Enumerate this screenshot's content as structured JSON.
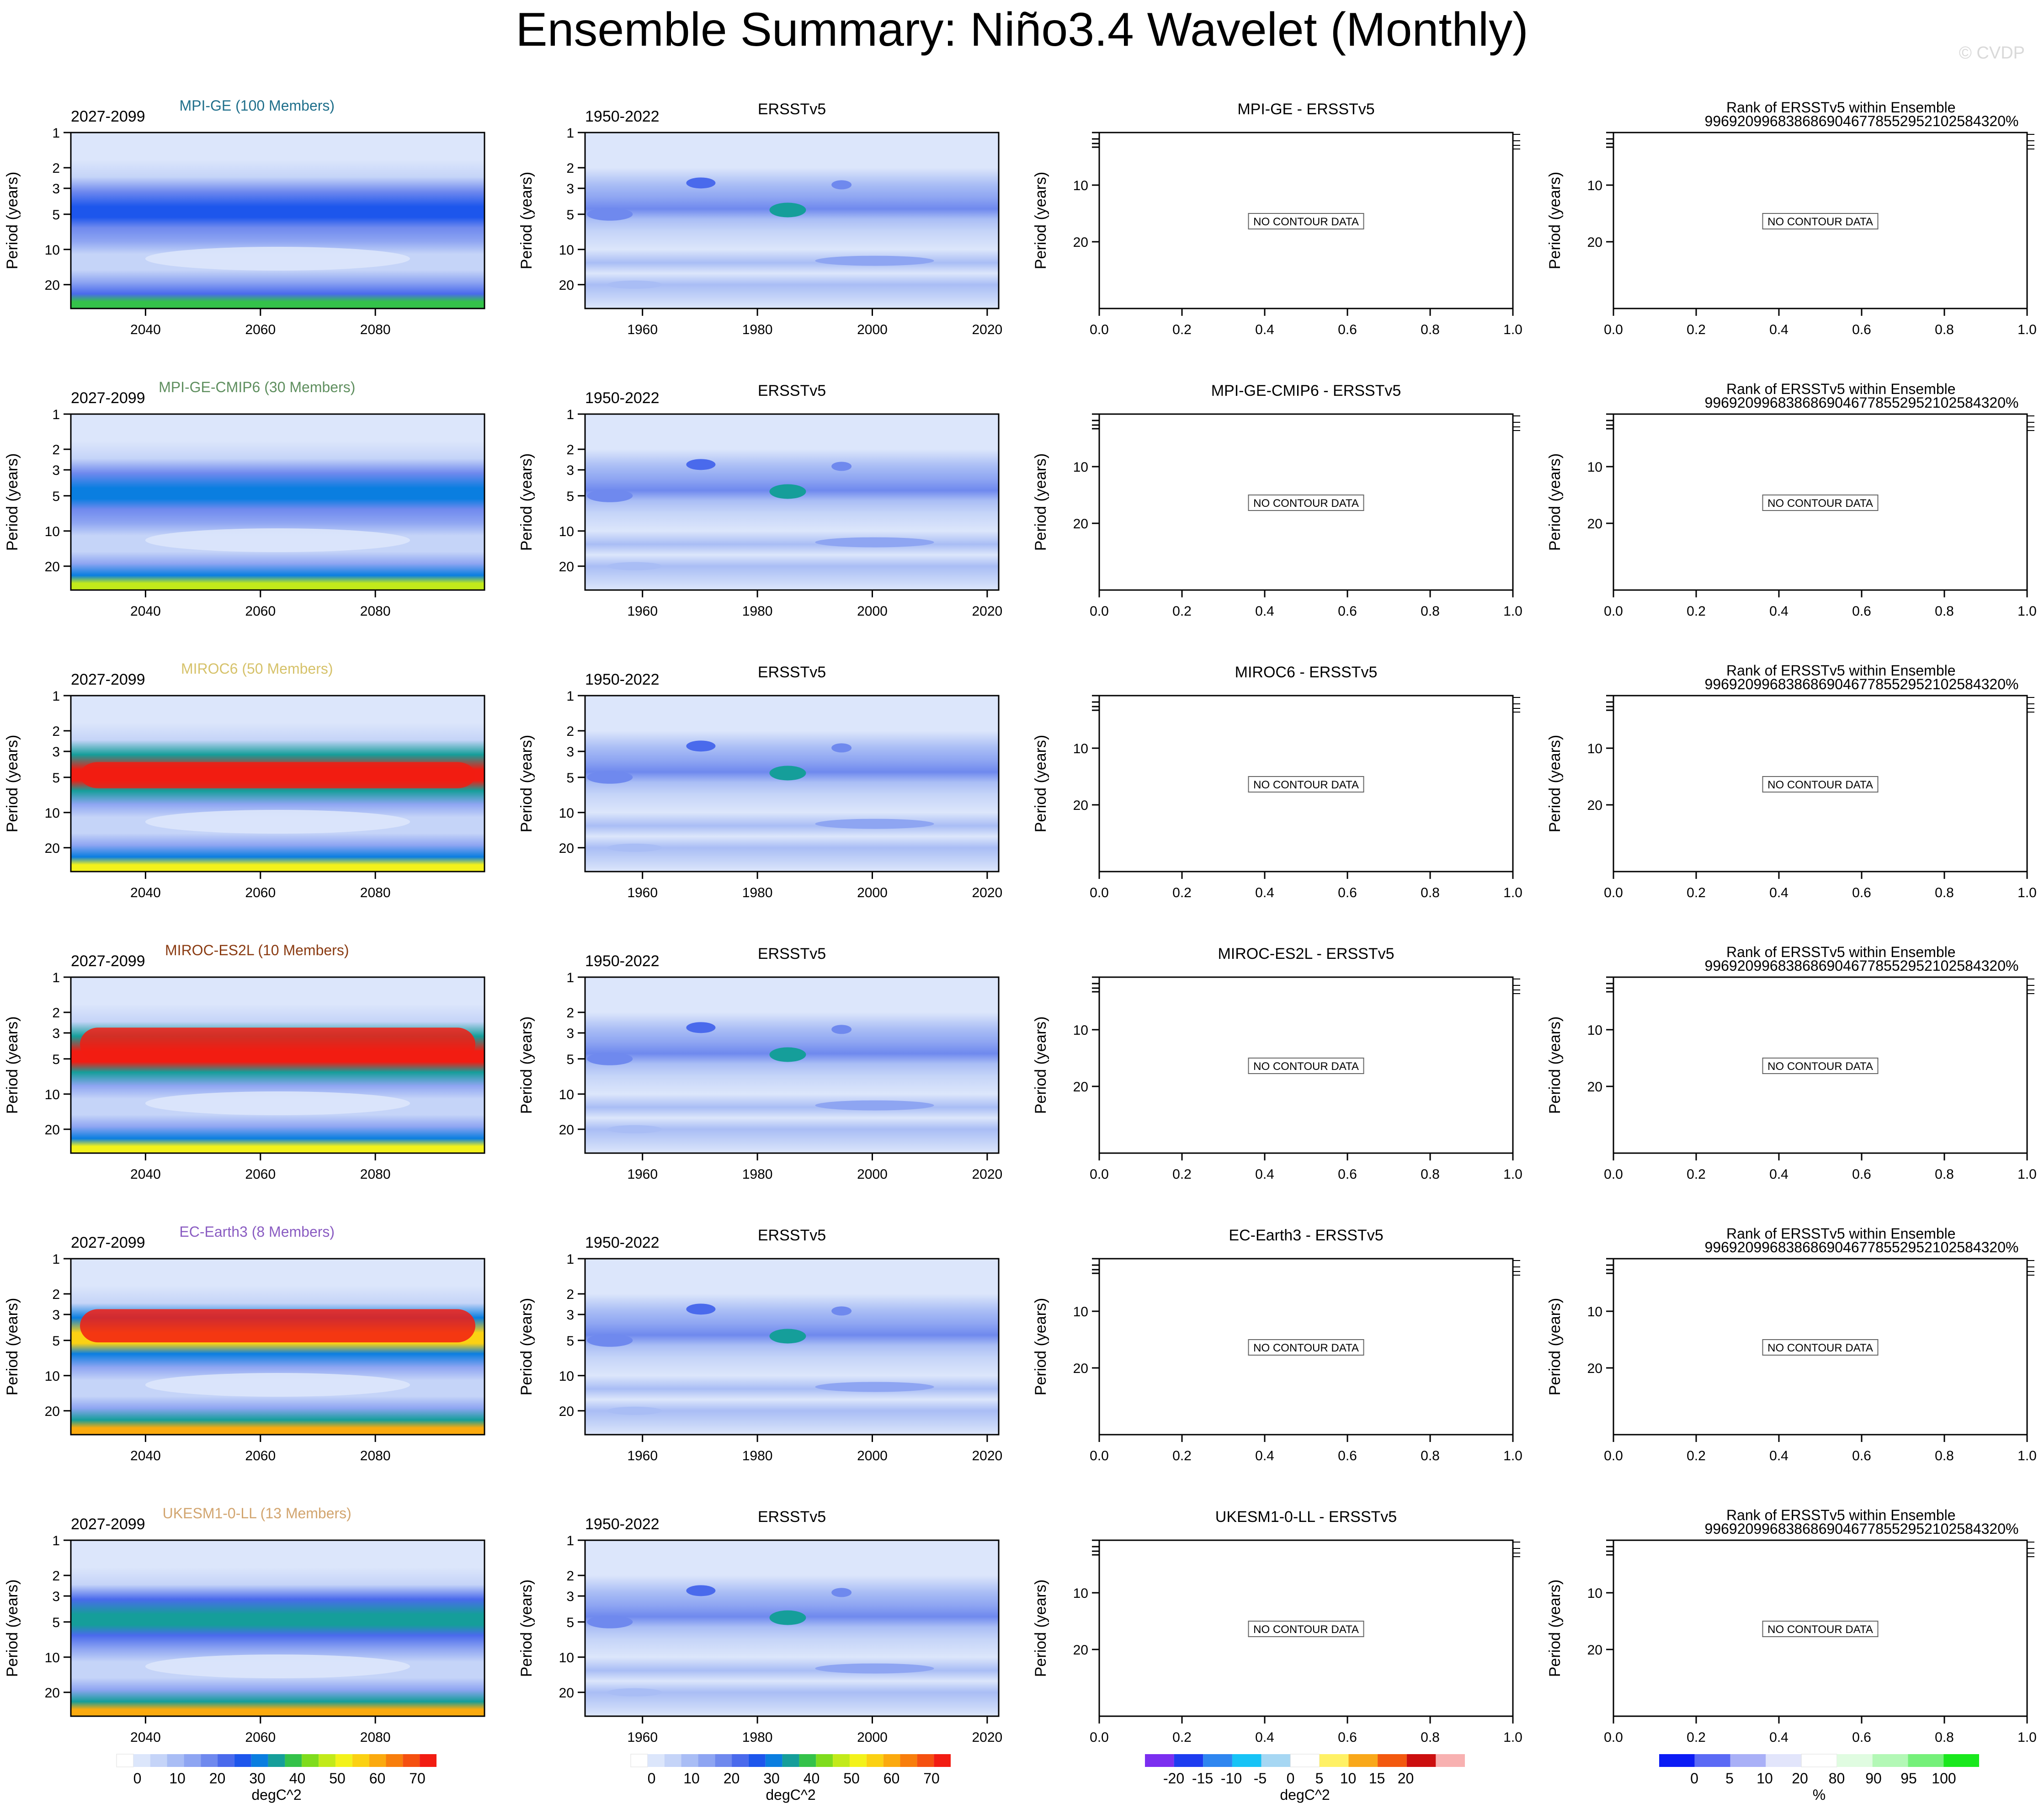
{
  "title": "Ensemble Summary: Niño3.4 Wavelet (Monthly)",
  "watermark": "© CVDP",
  "y_label": "Period (years)",
  "no_data_text": "NO CONTOUR DATA",
  "rank_title": "Rank of ERSSTv5 within Ensemble",
  "rank_subtitle": "9969209968386869046778552952102584320%",
  "rows": [
    {
      "model": "MPI-GE (100 Members)",
      "short": "MPI-GE",
      "color": "#1f6f8b",
      "diff_title": "MPI-GE - ERSSTv5",
      "strength": 0.3,
      "band": 6,
      "edge": 0.55
    },
    {
      "model": "MPI-GE-CMIP6 (30 Members)",
      "short": "MPI-GE-CMIP6",
      "color": "#5f8f5f",
      "diff_title": "MPI-GE-CMIP6 - ERSSTv5",
      "strength": 0.4,
      "band": 5,
      "edge": 0.75
    },
    {
      "model": "MIROC6 (50 Members)",
      "short": "MIROC6",
      "color": "#d6c26a",
      "diff_title": "MIROC6 - ERSSTv5",
      "strength": 1.0,
      "band": 5,
      "edge": 0.85
    },
    {
      "model": "MIROC-ES2L (10 Members)",
      "short": "MIROC-ES2L",
      "color": "#8a3b12",
      "diff_title": "MIROC-ES2L - ERSSTv5",
      "strength": 1.0,
      "band": 4,
      "edge": 0.85
    },
    {
      "model": "EC-Earth3 (8 Members)",
      "short": "EC-Earth3",
      "color": "#8a5cc2",
      "diff_title": "EC-Earth3 - ERSSTv5",
      "strength": 0.75,
      "band": 4,
      "edge": 1.0
    },
    {
      "model": "UKESM1-0-LL (13 Members)",
      "short": "UKESM1-0-LL",
      "color": "#d2a56f",
      "diff_title": "UKESM1-0-LL - ERSSTv5",
      "strength": 0.45,
      "band": 5,
      "edge": 1.0
    }
  ],
  "model_period": "2027-2099",
  "obs_period": "1950-2022",
  "obs_title": "ERSSTv5",
  "axes": {
    "model_x_ticks": [
      "2040",
      "2060",
      "2080"
    ],
    "model_x_values": [
      2040,
      2060,
      2080
    ],
    "model_x_range": [
      2027,
      2099
    ],
    "obs_x_ticks": [
      "1960",
      "1980",
      "2000",
      "2020"
    ],
    "obs_x_values": [
      1960,
      1980,
      2000,
      2020
    ],
    "obs_x_range": [
      1950,
      2022
    ],
    "diff_x_ticks": [
      "0.0",
      "0.2",
      "0.4",
      "0.6",
      "0.8",
      "1.0"
    ],
    "period_ticks": [
      "1",
      "2",
      "3",
      "5",
      "10",
      "20"
    ],
    "period_values": [
      1,
      2,
      3,
      5,
      10,
      20
    ],
    "period_range": [
      1,
      32
    ],
    "diff_period_ticks": [
      "10",
      "20"
    ]
  },
  "colorbars": {
    "power": {
      "labels": [
        "0",
        "10",
        "20",
        "30",
        "40",
        "50",
        "60",
        "70"
      ],
      "unit": "degC^2",
      "colors": [
        "#ffffff",
        "#dce6fb",
        "#c5d4f8",
        "#a9bdf5",
        "#8ea5f2",
        "#6f89ee",
        "#4a6aec",
        "#1d56ec",
        "#0a7ee0",
        "#159e9a",
        "#34c24a",
        "#7fdc1d",
        "#c2ea1a",
        "#f3f21b",
        "#fbd113",
        "#fbaa0e",
        "#f87e0c",
        "#f55010",
        "#f21c12"
      ]
    },
    "diff": {
      "labels": [
        "-20",
        "-15",
        "-10",
        "-5",
        "0",
        "5",
        "10",
        "15",
        "20"
      ],
      "unit": "degC^2",
      "colors": [
        "#7b2ff0",
        "#1d3cf0",
        "#2f86f0",
        "#17c3f6",
        "#a6d7f3",
        "#ffffff",
        "#fff165",
        "#f9a81a",
        "#f3590f",
        "#cc0f0f",
        "#f8b1b1"
      ]
    },
    "rank": {
      "labels": [
        "0",
        "5",
        "10",
        "20",
        "80",
        "90",
        "95",
        "100"
      ],
      "unit": "%",
      "colors": [
        "#0b1bf5",
        "#5b6af5",
        "#a9b0f7",
        "#e2e5fb",
        "#ffffff",
        "#e0fce1",
        "#b3f8b6",
        "#75f07a",
        "#19e81d"
      ]
    }
  }
}
